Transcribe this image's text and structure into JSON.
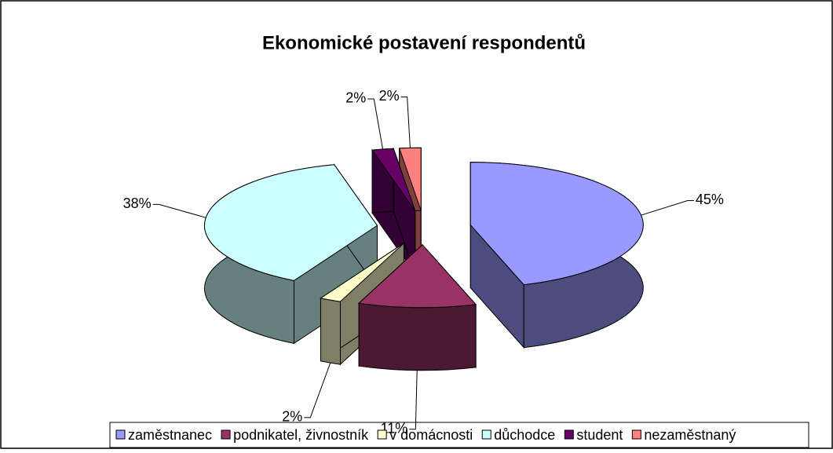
{
  "chart_data": {
    "type": "pie",
    "title": "Ekonomické postavení respondentů",
    "categories": [
      "zaměstnanec",
      "podnikatel, živnostník",
      "v domácnosti",
      "důchodce",
      "student",
      "nezaměstnaný"
    ],
    "values": [
      45,
      11,
      2,
      38,
      2,
      2
    ],
    "value_labels": [
      "45%",
      "11%",
      "2%",
      "38%",
      "2%",
      "2%"
    ],
    "colors": [
      "#9999ff",
      "#993366",
      "#ffffcc",
      "#ccffff",
      "#660066",
      "#ff8080"
    ],
    "legend": "bottom"
  }
}
